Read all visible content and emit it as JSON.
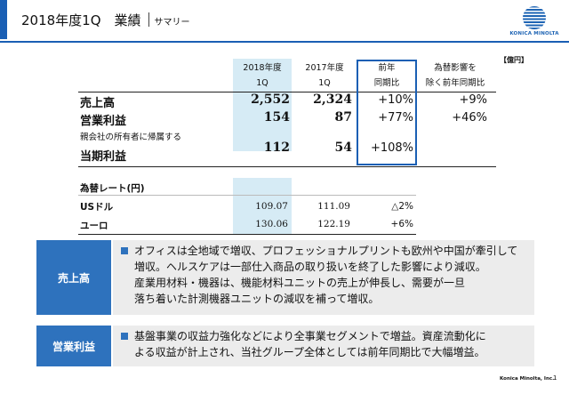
{
  "header": {
    "title": "2018年度1Q　業績",
    "subtitle": "サマリー",
    "accent_color": "#1a5fb4"
  },
  "logo": {
    "text": "KONICA MINOLTA",
    "mark": "globe-logo-icon"
  },
  "unit_note": "【億円】",
  "table": {
    "columns": [
      {
        "line1": "2018年度",
        "line2": "1Q"
      },
      {
        "line1": "2017年度",
        "line2": "1Q"
      },
      {
        "line1": "前年",
        "line2": "同期比"
      },
      {
        "line1": "為替影響を",
        "line2": "除く前年同期比"
      }
    ],
    "rows": [
      {
        "label": "売上高",
        "v2018": "2,552",
        "v2017": "2,324",
        "yoy": "+10%",
        "yoy_ex_fx": "+9%"
      },
      {
        "label": "営業利益",
        "v2018": "154",
        "v2017": "87",
        "yoy": "+77%",
        "yoy_ex_fx": "+46%"
      },
      {
        "label_note": "親会社の所有者に帰属する",
        "label": "当期利益",
        "v2018": "112",
        "v2017": "54",
        "yoy": "+108%",
        "yoy_ex_fx": ""
      }
    ],
    "fx": {
      "header": "為替レート(円)",
      "rows": [
        {
          "label": "USドル",
          "v2018": "109.07",
          "v2017": "111.09",
          "change": "△2%"
        },
        {
          "label": "ユーロ",
          "v2018": "130.06",
          "v2017": "122.19",
          "change": "+6%"
        }
      ]
    },
    "shade_color": "#d6ebf5",
    "highlight_color": "#1a5fb4"
  },
  "sections": [
    {
      "label": "売上高",
      "lines": [
        "オフィスは全地域で増収、プロフェッショナルプリントも欧州や中国が牽引して",
        "増収。ヘルスケアは一部仕入商品の取り扱いを終了した影響により減収。",
        "産業用材料・機器は、機能材料ユニットの売上が伸長し、需要が一旦",
        "落ち着いた計測機器ユニットの減収を補って増収。"
      ]
    },
    {
      "label": "営業利益",
      "lines": [
        "基盤事業の収益力強化などにより全事業セグメントで増益。資産流動化に",
        "よる収益が計上され、当社グループ全体としては前年同期比で大幅増益。"
      ]
    }
  ],
  "footer": {
    "company": "Konica Minolta, Inc.",
    "page": "1"
  }
}
